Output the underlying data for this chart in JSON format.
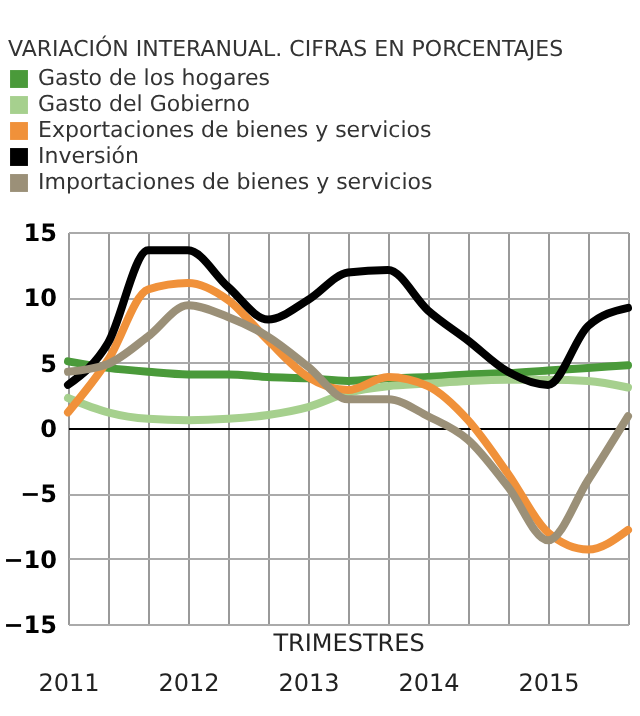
{
  "chart_data": {
    "type": "line",
    "title": "VARIACIÓN INTERANUAL. CIFRAS EN PORCENTAJES",
    "xlabel": "TRIMESTRES",
    "categories": [
      "2011",
      null,
      null,
      "2012",
      null,
      null,
      "2013",
      null,
      null,
      "2014",
      null,
      null,
      "2015",
      null,
      null
    ],
    "series": [
      {
        "name": "Gasto de los hogares",
        "color": "#4a9a3a",
        "values": [
          5.1,
          4.6,
          4.3,
          4.1,
          4.1,
          3.9,
          3.8,
          3.6,
          3.8,
          3.9,
          4.1,
          4.2,
          4.4,
          4.6,
          4.8
        ]
      },
      {
        "name": "Gasto del Gobierno",
        "color": "#a6d08e",
        "values": [
          2.3,
          1.2,
          0.7,
          0.6,
          0.7,
          1.0,
          1.6,
          2.7,
          3.2,
          3.4,
          3.6,
          3.7,
          3.7,
          3.6,
          3.1
        ]
      },
      {
        "name": "Exportaciones de bienes y servicios",
        "color": "#f0913a",
        "values": [
          1.2,
          5.2,
          10.6,
          11.1,
          9.8,
          6.7,
          3.9,
          2.9,
          3.9,
          3.2,
          0.6,
          -3.5,
          -8,
          -9.3,
          -7.8
        ]
      },
      {
        "name": "Inversión",
        "color": "#000000",
        "values": [
          3.3,
          6.5,
          13.6,
          13.6,
          10.8,
          8.3,
          9.8,
          11.9,
          12.1,
          9,
          6.7,
          4.3,
          3.3,
          7.8,
          9.2
        ]
      },
      {
        "name": "Importaciones de bienes y servicios",
        "color": "#9b9078",
        "values": [
          4.3,
          4.9,
          7.0,
          9.4,
          8.5,
          7.0,
          4.7,
          2.2,
          2.2,
          0.9,
          -0.9,
          -4.5,
          -8.6,
          -4,
          0.9
        ]
      }
    ],
    "ylim": [
      -15,
      15
    ],
    "yticks": [
      -15,
      -10,
      -5,
      0,
      5,
      10,
      15
    ],
    "grid": true,
    "legend": "top"
  }
}
